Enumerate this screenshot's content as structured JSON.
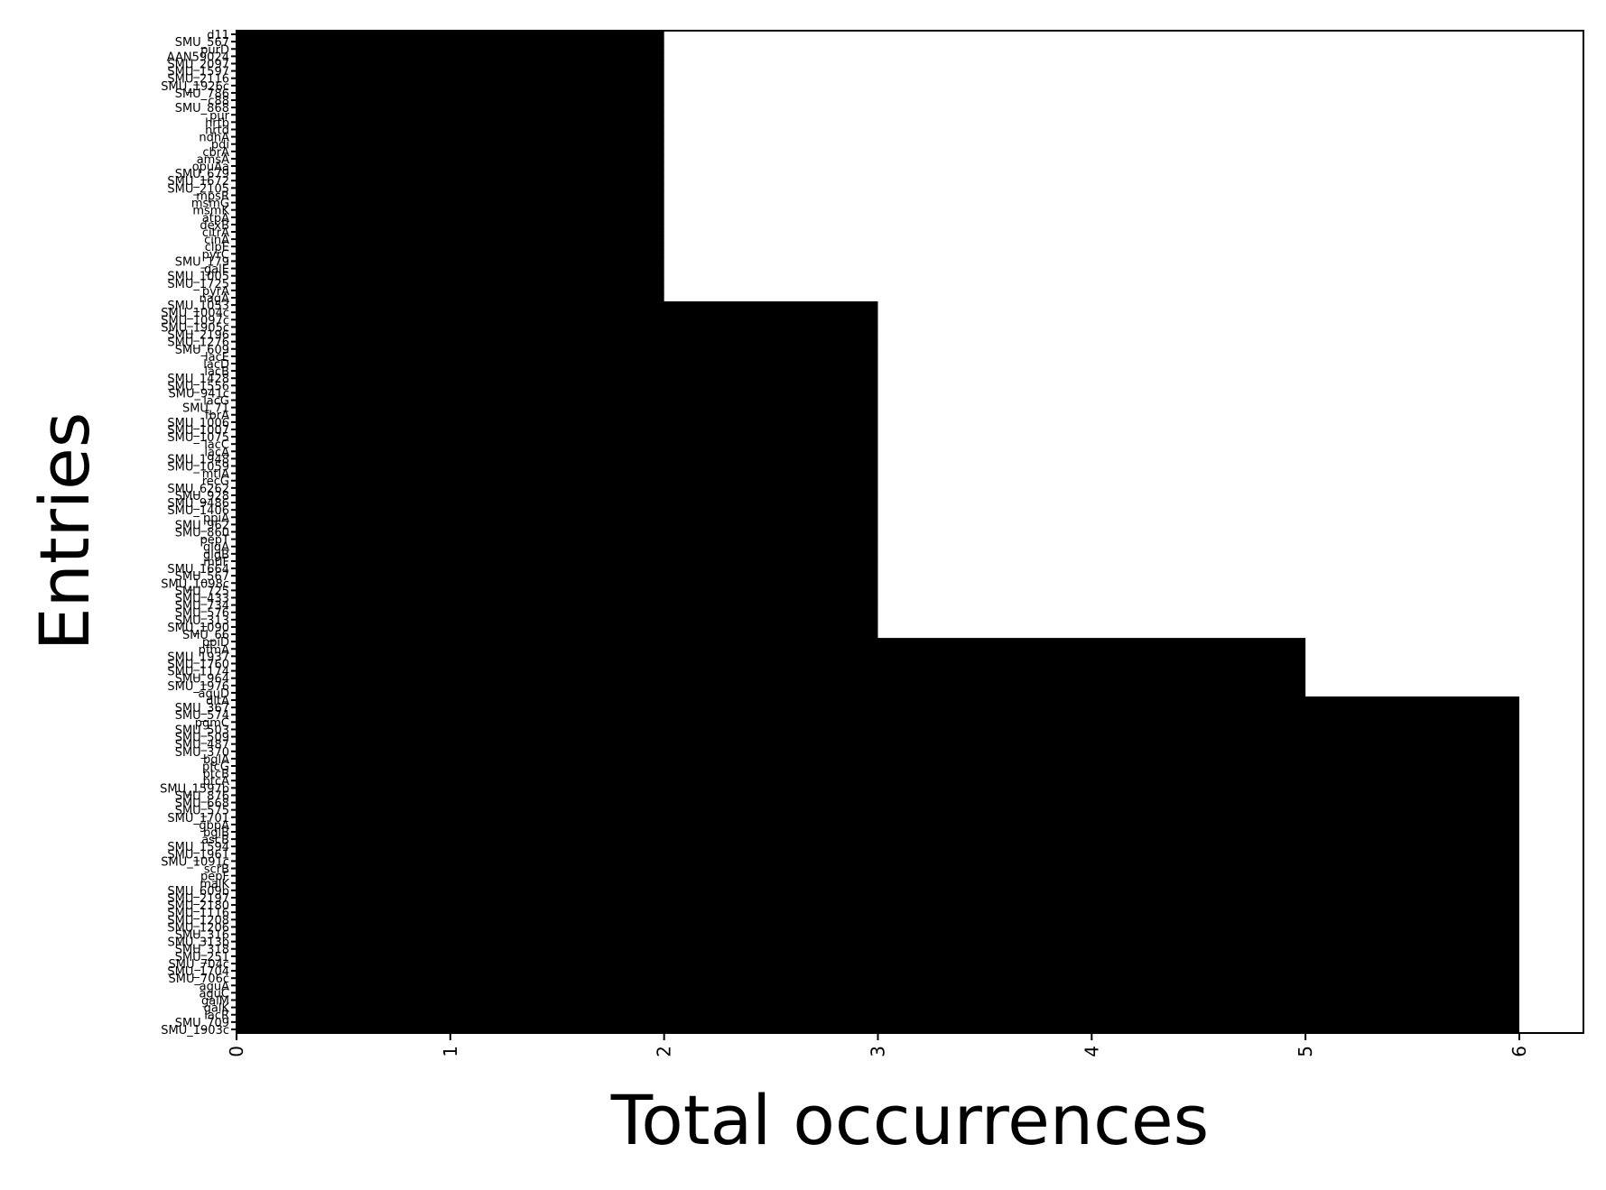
{
  "chart_data": {
    "type": "bar",
    "orientation": "horizontal",
    "title": "",
    "xlabel": "Total occurrences",
    "ylabel": "Entries",
    "xlim": [
      0,
      6.3
    ],
    "xticks": [
      "0",
      "1",
      "2",
      "3",
      "4",
      "5",
      "6"
    ],
    "grid": false,
    "legend": "none",
    "bar_color": "#000000",
    "note": "",
    "categories": [
      "d11",
      "SMU_567",
      "purD",
      "AAN59024",
      "SMU_2097",
      "SMU_1597",
      "SMU_2116",
      "SMU_1926c",
      "SMU_786",
      "c88",
      "SMU_868",
      "pur",
      "hrtb",
      "hrtd",
      "ndhA",
      "pdi",
      "cbrA",
      "amsA",
      "opuAa",
      "SMU_679",
      "SMU_1672",
      "SMU_2105",
      "mpsR",
      "msmG",
      "msmK",
      "atpA",
      "dexB",
      "citrA",
      "cinA",
      "clpE",
      "pyrC",
      "SMU_179",
      "galE",
      "SMU_1005",
      "SMU_1725",
      "pyrA",
      "nagA",
      "SMU_1053",
      "SMU_1004c",
      "SMU_1097c",
      "SMU_1905c",
      "SMU_2196",
      "SMU_1276",
      "SMU_609",
      "lacE",
      "lacD",
      "lacB",
      "SMU_1428",
      "SMU_1556",
      "SMU_941c",
      "lacG",
      "SMU_71",
      "fbrA",
      "SMU_1006",
      "SMU_1007",
      "SMU_1075",
      "lacC",
      "lacA",
      "SMU_1948",
      "SMU_1059",
      "mtlA",
      "recG",
      "SMU_6262",
      "SMU_928",
      "SMU_9486",
      "SMU_1406",
      "ppiA",
      "SMU_962",
      "SMU_860",
      "pepT",
      "glgA",
      "glgB",
      "mtlF",
      "SMU_1664",
      "SMU_567",
      "SMU_1098c",
      "SMU_725",
      "SMU_433",
      "SMU_734",
      "SMU_576",
      "SMU_313",
      "SMU_1090",
      "SMU_66",
      "ppiD",
      "pfmA",
      "SMU_1937",
      "SMU_1760",
      "SMU_1174",
      "SMU_964",
      "SMU_1976",
      "aguD",
      "dltA",
      "SMU_367",
      "SMU_574",
      "pgmC",
      "SMU_503",
      "SMU_509",
      "SMU_487",
      "SMU_370",
      "bglA",
      "pfcG",
      "ptcB",
      "ptcA",
      "SMU_1597b",
      "SMU_876",
      "SMU_668",
      "SMU_575",
      "SMU_1701",
      "gbpA",
      "bglB",
      "ascB",
      "SMU_1594",
      "SMU_1961",
      "SMU_1091c",
      "scrB",
      "pepF",
      "malK",
      "SMU_609b",
      "SMU_2197",
      "SMU_2180",
      "SMU_1116",
      "SMU_1208",
      "SMU_1206",
      "SMU_316",
      "SMU_313b",
      "SMU_318",
      "SMU_251",
      "SMU_704c",
      "SMU_1704",
      "SMU_706c",
      "aguA",
      "aguC",
      "galM",
      "galK",
      "lacR",
      "SMU_709",
      "SMU_1903c"
    ],
    "values": [
      2,
      2,
      2,
      2,
      2,
      2,
      2,
      2,
      2,
      2,
      2,
      2,
      2,
      2,
      2,
      2,
      2,
      2,
      2,
      2,
      2,
      2,
      2,
      2,
      2,
      2,
      2,
      2,
      2,
      2,
      2,
      2,
      2,
      2,
      2,
      2,
      2,
      3,
      3,
      3,
      3,
      3,
      3,
      3,
      3,
      3,
      3,
      3,
      3,
      3,
      3,
      3,
      3,
      3,
      3,
      3,
      3,
      3,
      3,
      3,
      3,
      3,
      3,
      3,
      3,
      3,
      3,
      3,
      3,
      3,
      3,
      3,
      3,
      3,
      3,
      3,
      3,
      3,
      3,
      3,
      3,
      3,
      3,
      5,
      5,
      5,
      5,
      5,
      5,
      5,
      5,
      6,
      6,
      6,
      6,
      6,
      6,
      6,
      6,
      6,
      6,
      6,
      6,
      6,
      6,
      6,
      6,
      6,
      6,
      6,
      6,
      6,
      6,
      6,
      6,
      6,
      6,
      6,
      6,
      6,
      6,
      6,
      6,
      6,
      6,
      6,
      6,
      6,
      6,
      6,
      6,
      6,
      6,
      6,
      6,
      6,
      6
    ]
  }
}
